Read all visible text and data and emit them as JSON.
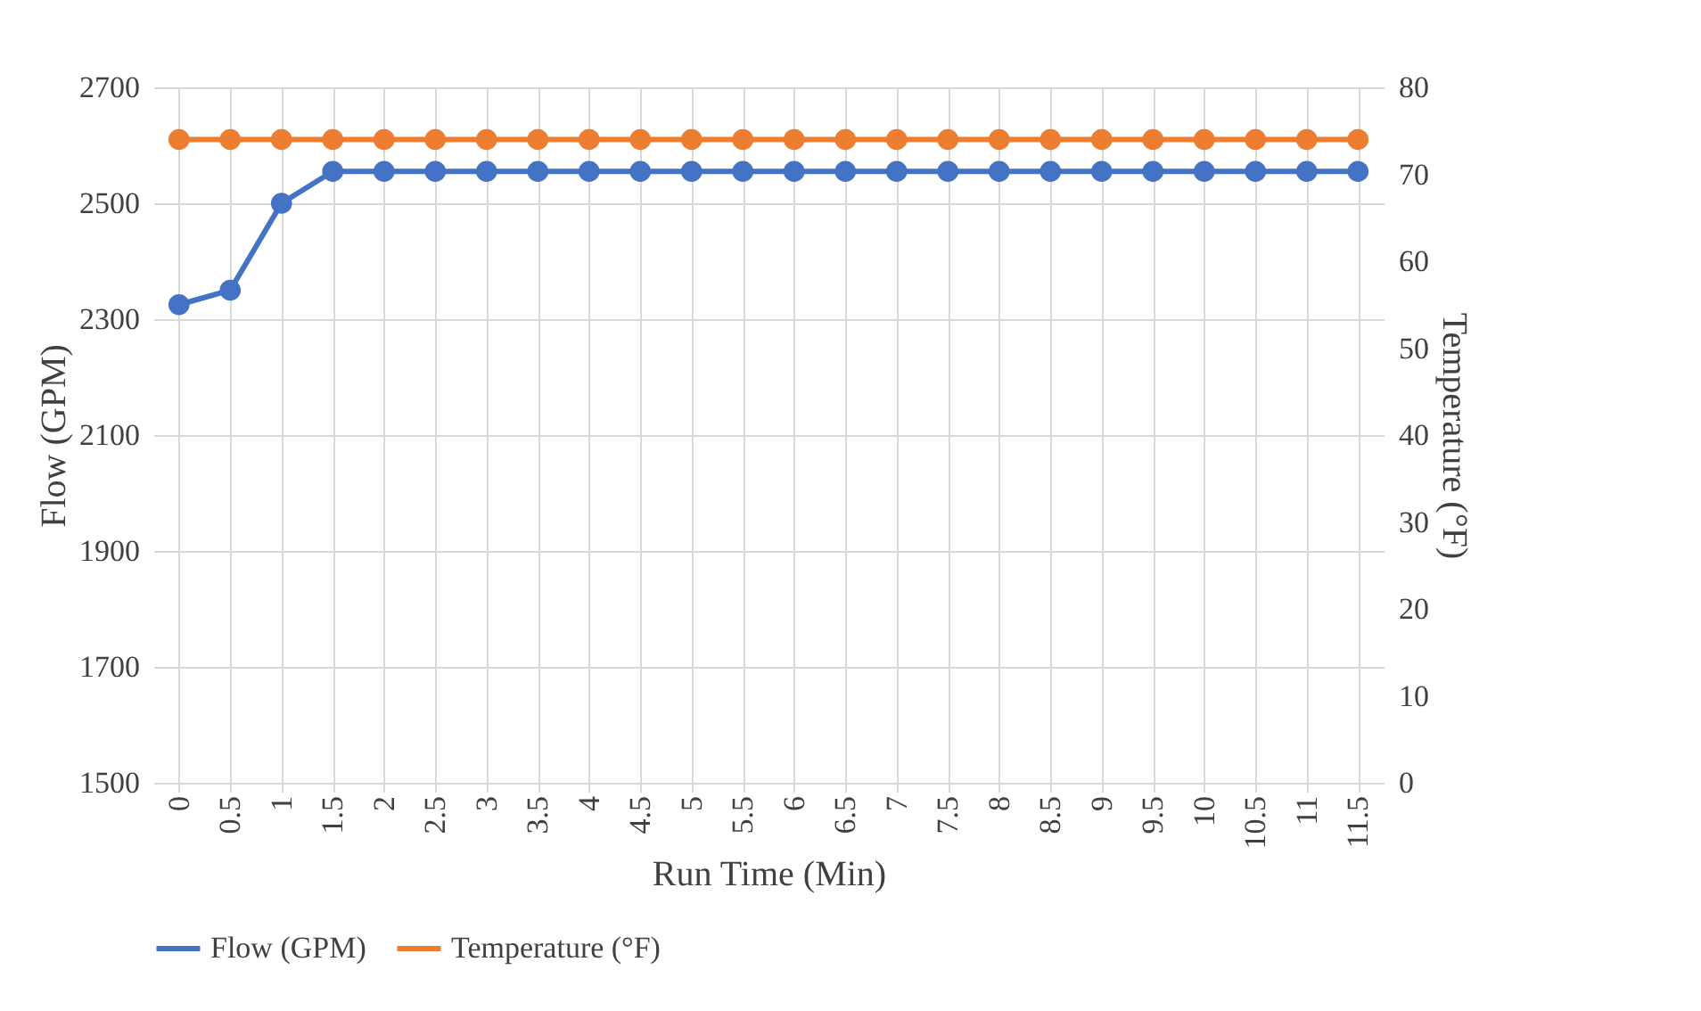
{
  "chart_data": {
    "type": "line",
    "xlabel": "Run Time (Min)",
    "ylabel": "Flow  (GPM)",
    "y2label": "Temperature (°F)",
    "categories": [
      "0",
      "0.5",
      "1",
      "1.5",
      "2",
      "2.5",
      "3",
      "3.5",
      "4",
      "4.5",
      "5",
      "5.5",
      "6",
      "6.5",
      "7",
      "7.5",
      "8",
      "8.5",
      "9",
      "9.5",
      "10",
      "10.5",
      "11",
      "11.5"
    ],
    "series": [
      {
        "name": "Flow (GPM)",
        "color": "#4472c4",
        "values": [
          2325,
          2350,
          2500,
          2555,
          2555,
          2555,
          2555,
          2555,
          2555,
          2555,
          2555,
          2555,
          2555,
          2555,
          2555,
          2555,
          2555,
          2555,
          2555,
          2555,
          2555,
          2555,
          2555,
          2555
        ]
      },
      {
        "name": "Temperature (°F)",
        "color": "#ed7d31",
        "axis": "y2",
        "values": [
          74,
          74,
          74,
          74,
          74,
          74,
          74,
          74,
          74,
          74,
          74,
          74,
          74,
          74,
          74,
          74,
          74,
          74,
          74,
          74,
          74,
          74,
          74,
          74
        ]
      }
    ],
    "ylim": [
      1500,
      2700
    ],
    "yticks": [
      1500,
      1700,
      1900,
      2100,
      2300,
      2500,
      2700
    ],
    "y2lim": [
      0,
      80
    ],
    "y2ticks": [
      0,
      10,
      20,
      30,
      40,
      50,
      60,
      70,
      80
    ],
    "grid": true,
    "legend": "bottom",
    "marker": "circle",
    "line_style": "solid"
  }
}
